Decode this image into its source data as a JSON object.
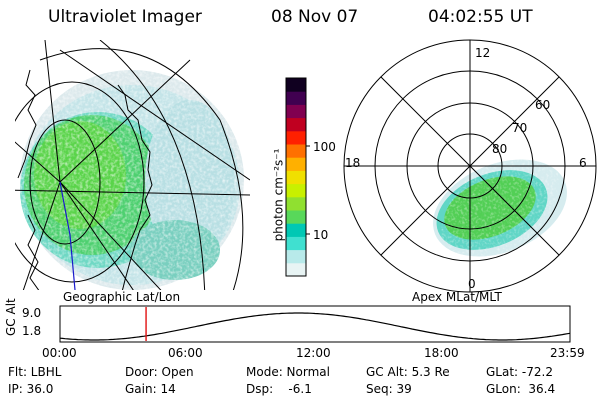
{
  "header": {
    "instrument": "Ultraviolet Imager",
    "date": "08 Nov 07",
    "time": "04:02:55 UT"
  },
  "left_panel": {
    "label": "Geographic Lat/Lon"
  },
  "colorbar": {
    "unit_label": "photon cm⁻²s⁻¹",
    "scale": "log",
    "ticks": [
      "100",
      "10"
    ],
    "colors": [
      "#e8f4f4",
      "#b8eaea",
      "#40e0d0",
      "#00c8b4",
      "#58d85a",
      "#90e030",
      "#c8f000",
      "#f0e000",
      "#ffb000",
      "#ff7000",
      "#ff2000",
      "#c00020",
      "#800050",
      "#400050",
      "#100020"
    ]
  },
  "polar_panel": {
    "label": "Apex MLat/MLT",
    "mlt_labels": {
      "top": "12",
      "left": "18",
      "right": "6",
      "bottom": "0"
    },
    "mlat_labels": [
      "60",
      "70",
      "80"
    ]
  },
  "altitude_plot": {
    "axis_label": "GC Alt",
    "y_ticks": [
      "9.0",
      "1.8"
    ],
    "x_ticks": [
      "00:00",
      "06:00",
      "12:00",
      "18:00",
      "23:59"
    ],
    "marker_time_hours": 4.05
  },
  "info": {
    "row1": {
      "flt": "Flt: LBHL",
      "door": "Door: Open",
      "mode": "Mode: Normal",
      "gcalt": "GC Alt: 5.3 Re",
      "glat": "GLat: -72.2"
    },
    "row2": {
      "ip": "IP: 36.0",
      "gain": "Gain: 14",
      "dsp": "Dsp:    -6.1",
      "seq": "Seq: 39",
      "glon": "GLon:  36.4"
    }
  }
}
